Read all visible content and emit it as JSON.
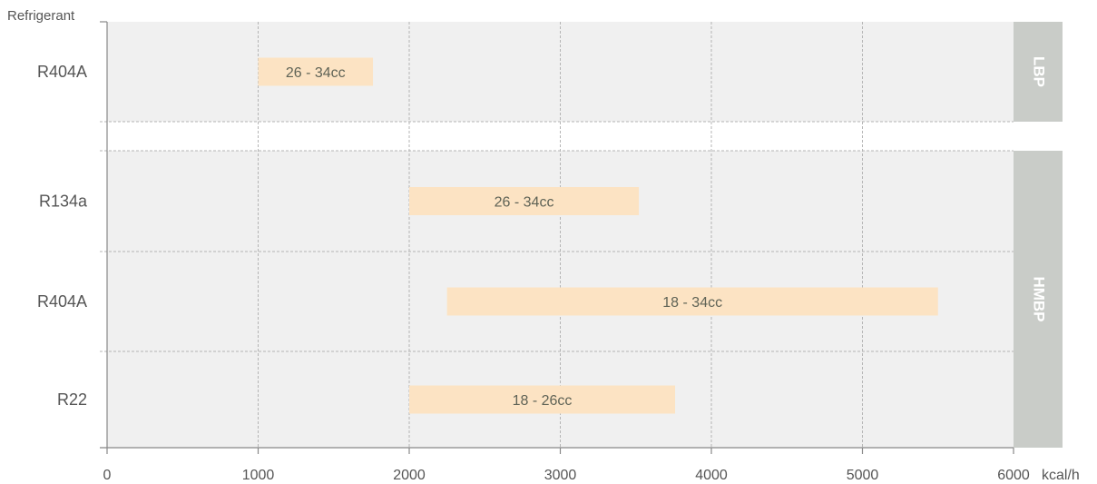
{
  "chart_data": {
    "type": "bar",
    "orientation": "horizontal-range",
    "y_axis_title": "Refrigerant",
    "x_unit": "kcal/h",
    "xlim": [
      0,
      6000
    ],
    "x_ticks": [
      "0",
      "1000",
      "2000",
      "3000",
      "4000",
      "5000",
      "6000"
    ],
    "grid": true,
    "groups": [
      {
        "name": "LBP",
        "rows": [
          {
            "category": "R404A",
            "start": 1000,
            "end": 1760,
            "label": "26 - 34cc"
          }
        ]
      },
      {
        "name": "HMBP",
        "rows": [
          {
            "category": "R134a",
            "start": 2000,
            "end": 3520,
            "label": "26 - 34cc"
          },
          {
            "category": "R404A",
            "start": 2250,
            "end": 5500,
            "label": "18 - 34cc"
          },
          {
            "category": "R22",
            "start": 2000,
            "end": 3760,
            "label": "18 - 26cc"
          }
        ]
      }
    ],
    "colors": {
      "plot_background": "#f0f0f0",
      "bar": "#fce3c3",
      "group_box": "#c9ccc8",
      "grid": "#b5b5b5",
      "axis": "#888888",
      "text": "#555555"
    }
  }
}
